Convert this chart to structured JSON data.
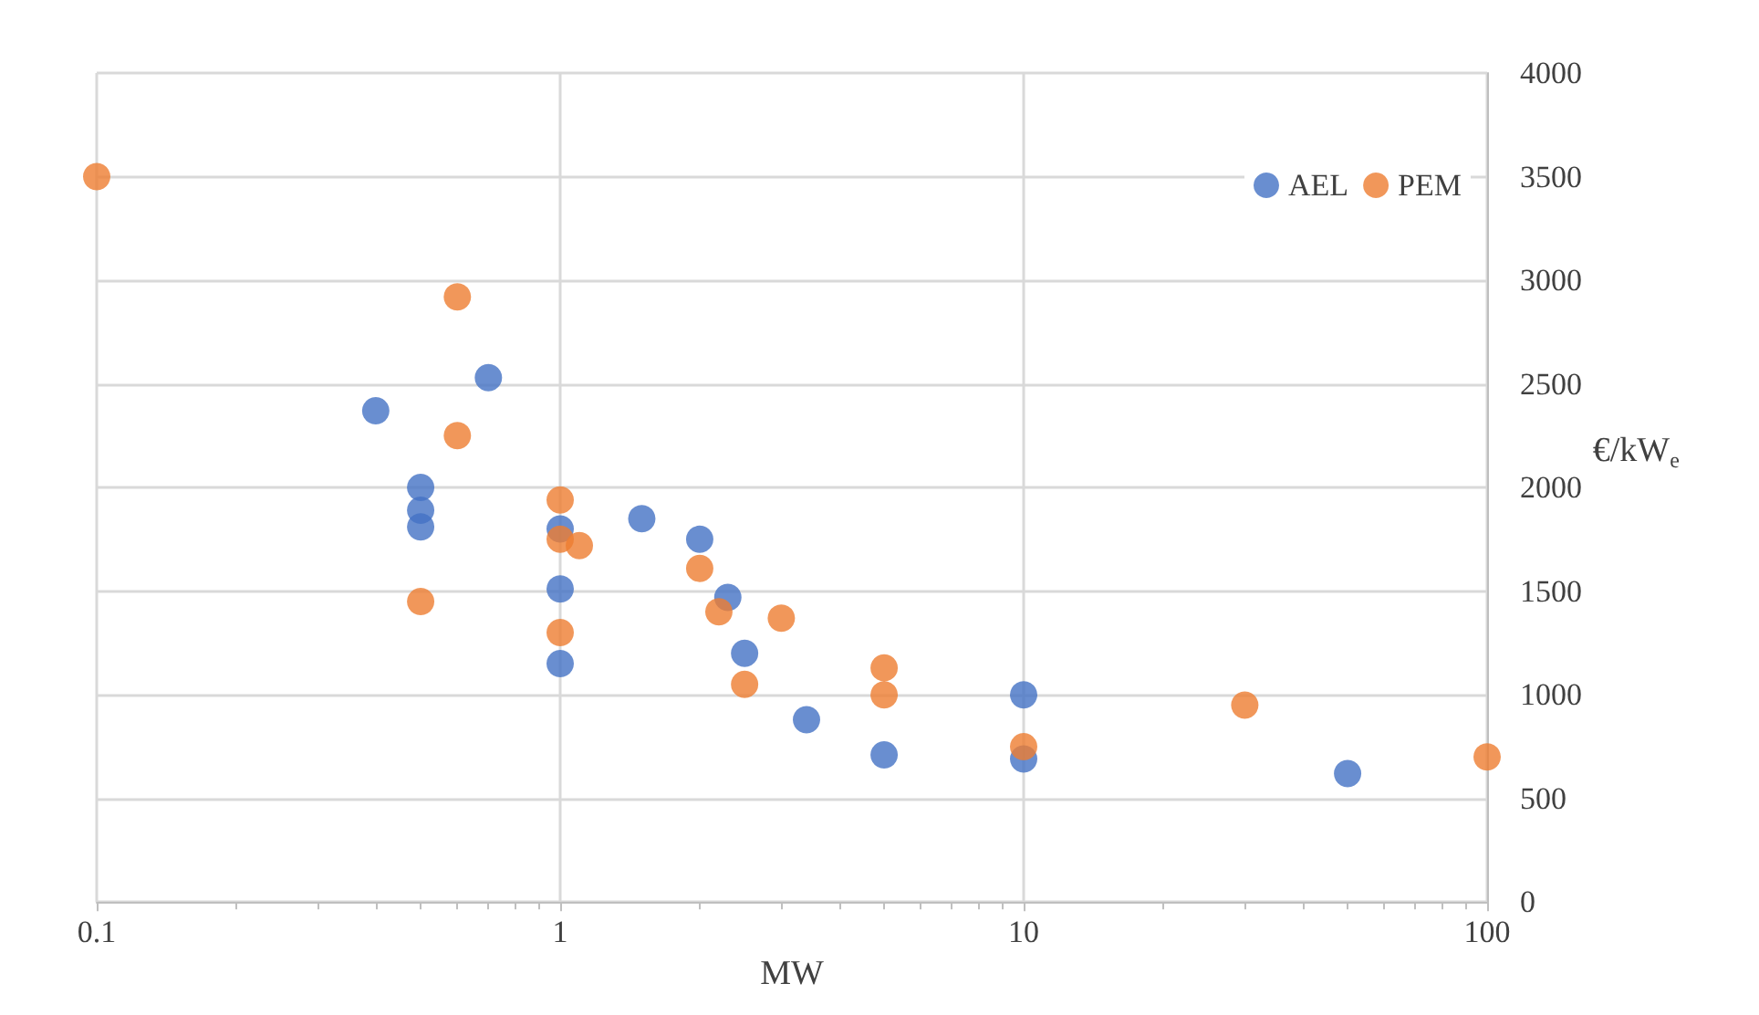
{
  "chart_data": {
    "type": "scatter",
    "xlabel": "MW",
    "ylabel": "€/kW$_{e}$",
    "log": "x",
    "xlim": [
      0.1,
      100
    ],
    "xticks": [
      0.1,
      1,
      10,
      100
    ],
    "ylim": [
      0,
      4000
    ],
    "yticks": [
      0,
      500,
      1000,
      1500,
      2000,
      2500,
      3000,
      3500,
      4000
    ],
    "grid": true,
    "legend": "top right",
    "marker": "circle",
    "series": [
      {
        "name": "AEL",
        "color": "#4472c4",
        "x": [
          0.4,
          0.7,
          0.5,
          0.5,
          0.5,
          1,
          1,
          1,
          1.5,
          2,
          2.3,
          2.5,
          3.4,
          5,
          10,
          10,
          50
        ],
        "values": [
          2370,
          2530,
          2000,
          1890,
          1810,
          1800,
          1510,
          1150,
          1850,
          1750,
          1470,
          1200,
          880,
          710,
          1000,
          690,
          620
        ]
      },
      {
        "name": "PEM",
        "color": "#ed7d31",
        "x": [
          0.1,
          0.6,
          0.6,
          0.5,
          1,
          1,
          1.1,
          1,
          2,
          2.2,
          3,
          2.5,
          5,
          5,
          10,
          30,
          100
        ],
        "values": [
          3500,
          2920,
          2250,
          1450,
          1940,
          1750,
          1720,
          1300,
          1610,
          1400,
          1370,
          1050,
          1130,
          1000,
          750,
          950,
          700
        ]
      }
    ]
  }
}
